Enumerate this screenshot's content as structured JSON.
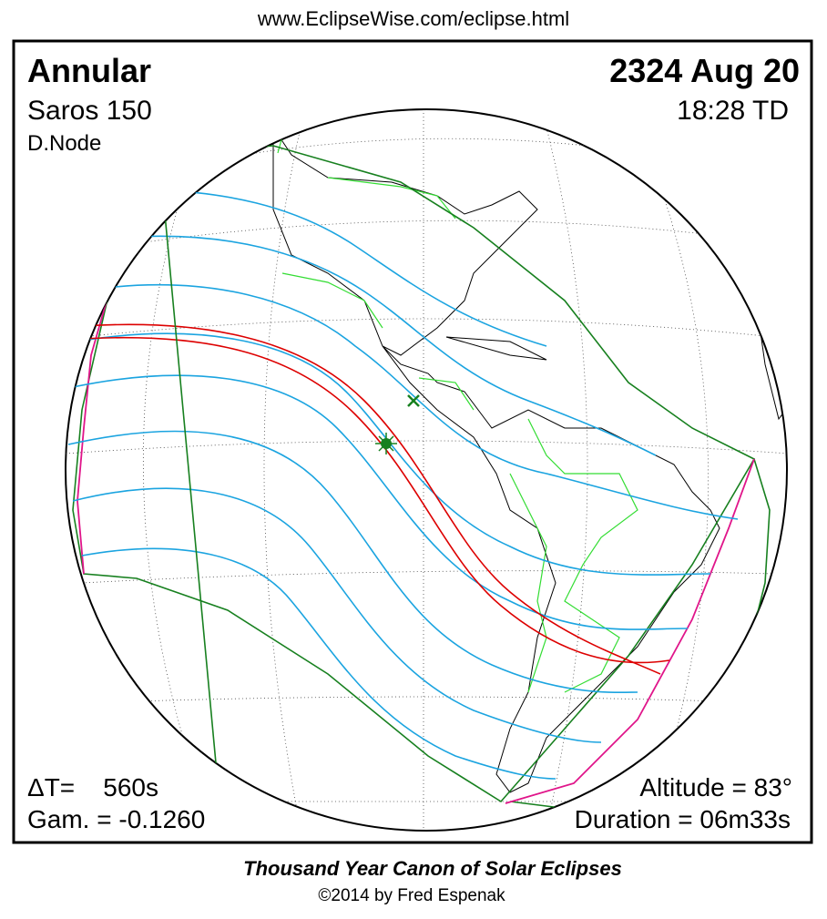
{
  "header": {
    "url": "www.EclipseWise.com/eclipse.html"
  },
  "panel": {
    "eclipse_type": "Annular",
    "saros": "Saros 150",
    "node": "D.Node",
    "date": "2324 Aug 20",
    "time": "18:28 TD",
    "delta_t": "ΔT=    560s",
    "gamma": "Gam. = -0.1260",
    "altitude": "Altitude = 83°",
    "duration": "Duration = 06m33s"
  },
  "footer": {
    "title": "Thousand Year Canon of Solar Eclipses",
    "copyright": "©2014 by Fred Espenak"
  }
}
